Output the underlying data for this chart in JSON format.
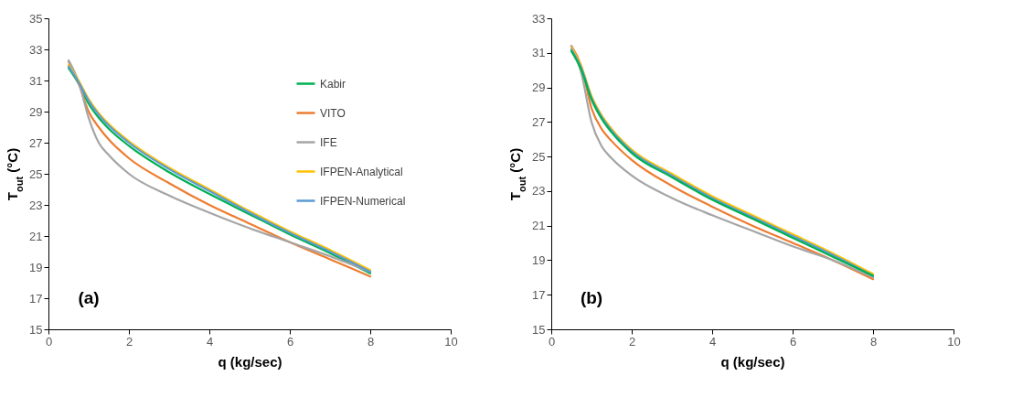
{
  "chart_data": [
    {
      "type": "line",
      "xlabel": "q (kg/sec)",
      "ylabel": "T$_{out}$ (°C)",
      "annotations": [
        "(a)"
      ],
      "legend": "top right",
      "grid": false,
      "line_style": "solid",
      "x": [
        0.5,
        0.75,
        1,
        1.25,
        1.5,
        2,
        3,
        4,
        5,
        6,
        7,
        8
      ],
      "xlim": [
        0,
        10
      ],
      "xticks": [
        0,
        2,
        4,
        6,
        8,
        10
      ],
      "ylim": [
        15,
        35
      ],
      "yticks": [
        15,
        17,
        19,
        21,
        23,
        25,
        27,
        29,
        31,
        33,
        35
      ],
      "series": [
        {
          "name": "Kabir",
          "color": "#00b050",
          "values": [
            31.8,
            30.8,
            29.5,
            28.6,
            27.9,
            26.8,
            25.1,
            23.7,
            22.4,
            21.1,
            19.9,
            18.6
          ]
        },
        {
          "name": "VITO",
          "color": "#ed7d31",
          "values": [
            32.2,
            30.8,
            29.0,
            28.0,
            27.2,
            26.0,
            24.4,
            23.0,
            21.8,
            20.6,
            19.5,
            18.4
          ]
        },
        {
          "name": "IFE",
          "color": "#a5a5a5",
          "values": [
            32.3,
            30.9,
            28.6,
            27.0,
            26.2,
            25.0,
            23.6,
            22.5,
            21.5,
            20.6,
            19.7,
            18.7
          ]
        },
        {
          "name": "IFPEN-Analytical",
          "color": "#ffc000",
          "values": [
            32.0,
            31.0,
            29.8,
            28.9,
            28.2,
            27.1,
            25.4,
            24.0,
            22.6,
            21.3,
            20.1,
            18.8
          ]
        },
        {
          "name": "IFPEN-Numerical",
          "color": "#5b9bd5",
          "values": [
            31.9,
            30.9,
            29.7,
            28.8,
            28.1,
            27.0,
            25.3,
            23.9,
            22.5,
            21.2,
            20.0,
            18.7
          ]
        }
      ]
    },
    {
      "type": "line",
      "xlabel": "q (kg/sec)",
      "ylabel": "T$_{out}$ (°C)",
      "annotations": [
        "(b)"
      ],
      "grid": false,
      "line_style": "solid",
      "x": [
        0.5,
        0.75,
        1,
        1.25,
        1.5,
        2,
        3,
        4,
        5,
        6,
        7,
        8
      ],
      "xlim": [
        0,
        10
      ],
      "xticks": [
        0,
        2,
        4,
        6,
        8,
        10
      ],
      "ylim": [
        15,
        33
      ],
      "yticks": [
        15,
        17,
        19,
        21,
        23,
        25,
        27,
        29,
        31,
        33
      ],
      "series": [
        {
          "color": "#ed7d31",
          "values": [
            31.4,
            30.2,
            27.8,
            26.6,
            25.9,
            24.8,
            23.3,
            22.1,
            21.0,
            20.0,
            19.0,
            17.9
          ]
        },
        {
          "color": "#a5a5a5",
          "values": [
            31.4,
            29.8,
            27.0,
            25.6,
            24.9,
            23.9,
            22.6,
            21.6,
            20.7,
            19.8,
            19.0,
            18.0
          ]
        },
        {
          "color": "#ffc000",
          "values": [
            31.3,
            30.2,
            28.5,
            27.4,
            26.6,
            25.4,
            24.0,
            22.7,
            21.6,
            20.5,
            19.4,
            18.2
          ]
        },
        {
          "color": "#5b9bd5",
          "values": [
            31.2,
            30.1,
            28.4,
            27.3,
            26.5,
            25.3,
            23.9,
            22.6,
            21.5,
            20.4,
            19.3,
            18.1
          ]
        },
        {
          "color": "#00b050",
          "values": [
            31.1,
            30.0,
            28.3,
            27.2,
            26.4,
            25.2,
            23.8,
            22.5,
            21.4,
            20.3,
            19.2,
            18.1
          ]
        }
      ]
    }
  ]
}
